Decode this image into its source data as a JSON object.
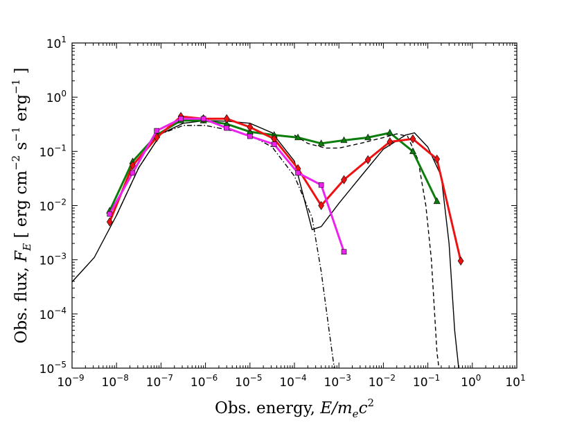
{
  "chart_data": {
    "type": "line",
    "x_scale": "log",
    "y_scale": "log",
    "xlim": [
      1e-09,
      10
    ],
    "ylim": [
      1e-05,
      10
    ],
    "xlabel_text": "Obs. energy, ",
    "xlabel_math": "E/m",
    "xlabel_sub": "e",
    "xlabel_c": "c",
    "xlabel_sup": "2",
    "ylabel_text": "Obs. flux, ",
    "ylabel_math": "F",
    "ylabel_sub": "E",
    "ylabel_unit_1": "[ erg cm",
    "ylabel_unit_1_sup": "−2",
    "ylabel_unit_2": " s",
    "ylabel_unit_2_sup": "−1",
    "ylabel_unit_3": " erg",
    "ylabel_unit_3_sup": "−1",
    "ylabel_unit_4": " ]",
    "x_ticks": [
      {
        "base": "10",
        "exp": "-9"
      },
      {
        "base": "10",
        "exp": "-8"
      },
      {
        "base": "10",
        "exp": "-7"
      },
      {
        "base": "10",
        "exp": "-6"
      },
      {
        "base": "10",
        "exp": "-5"
      },
      {
        "base": "10",
        "exp": "-4"
      },
      {
        "base": "10",
        "exp": "-3"
      },
      {
        "base": "10",
        "exp": "-2"
      },
      {
        "base": "10",
        "exp": "-1"
      },
      {
        "base": "10",
        "exp": "0"
      },
      {
        "base": "10",
        "exp": "1"
      }
    ],
    "y_ticks": [
      {
        "base": "10",
        "exp": "-5"
      },
      {
        "base": "10",
        "exp": "-4"
      },
      {
        "base": "10",
        "exp": "-3"
      },
      {
        "base": "10",
        "exp": "-2"
      },
      {
        "base": "10",
        "exp": "-1"
      },
      {
        "base": "10",
        "exp": "0"
      },
      {
        "base": "10",
        "exp": "1"
      }
    ],
    "series": [
      {
        "style": "solid-black-thin",
        "color": "#000000",
        "points": [
          [
            1e-09,
            0.00039
          ],
          [
            3.16e-09,
            0.0011
          ],
          [
            1e-08,
            0.0066
          ],
          [
            3.16e-08,
            0.05
          ],
          [
            1e-07,
            0.21
          ],
          [
            3.16e-07,
            0.33
          ],
          [
            1e-06,
            0.37
          ],
          [
            3.16e-06,
            0.36
          ],
          [
            1e-05,
            0.33
          ],
          [
            3.16e-05,
            0.22
          ],
          [
            0.0001,
            0.066
          ],
          [
            0.00025,
            0.0036
          ],
          [
            0.0004,
            0.0041
          ],
          [
            0.001,
            0.011
          ],
          [
            0.00316,
            0.035
          ],
          [
            0.01,
            0.11
          ],
          [
            0.0316,
            0.2
          ],
          [
            0.05,
            0.22
          ],
          [
            0.1,
            0.12
          ],
          [
            0.2,
            0.035
          ],
          [
            0.3,
            0.002
          ],
          [
            0.4,
            5e-05
          ],
          [
            0.5,
            9e-06
          ]
        ]
      },
      {
        "style": "dashed-black",
        "color": "#000000",
        "points": [
          [
            0.0001,
            0.2
          ],
          [
            0.0002,
            0.14
          ],
          [
            0.0005,
            0.115
          ],
          [
            0.001,
            0.115
          ],
          [
            0.003,
            0.14
          ],
          [
            0.01,
            0.18
          ],
          [
            0.02,
            0.21
          ],
          [
            0.035,
            0.19
          ],
          [
            0.06,
            0.07
          ],
          [
            0.09,
            0.01
          ],
          [
            0.12,
            0.001
          ],
          [
            0.16,
            2e-05
          ],
          [
            0.18,
            9e-06
          ]
        ]
      },
      {
        "style": "dashdot-black",
        "color": "#000000",
        "points": [
          [
            1e-08,
            0.0066
          ],
          [
            3.16e-08,
            0.05
          ],
          [
            1e-07,
            0.21
          ],
          [
            3.16e-07,
            0.3
          ],
          [
            1e-06,
            0.3
          ],
          [
            3.16e-06,
            0.25
          ],
          [
            1e-05,
            0.2
          ],
          [
            3.16e-05,
            0.12
          ],
          [
            0.0001,
            0.035
          ],
          [
            0.00025,
            0.006
          ],
          [
            0.0004,
            0.0006
          ],
          [
            0.0006,
            5e-05
          ],
          [
            0.0008,
            9e-06
          ]
        ]
      },
      {
        "style": "green-triangles",
        "color": "#0b7d0b",
        "marker": "triangle",
        "points": [
          [
            7e-09,
            0.008
          ],
          [
            2.3e-08,
            0.065
          ],
          [
            8e-08,
            0.2
          ],
          [
            2.8e-07,
            0.37
          ],
          [
            9e-07,
            0.37
          ],
          [
            3e-06,
            0.32
          ],
          [
            1e-05,
            0.23
          ],
          [
            3.5e-05,
            0.2
          ],
          [
            0.00012,
            0.18
          ],
          [
            0.0004,
            0.14
          ],
          [
            0.0013,
            0.16
          ],
          [
            0.0045,
            0.18
          ],
          [
            0.014,
            0.22
          ],
          [
            0.046,
            0.1
          ],
          [
            0.16,
            0.012
          ]
        ]
      },
      {
        "style": "red-diamonds",
        "color": "#ee1111",
        "marker": "diamond",
        "points": [
          [
            7e-09,
            0.005
          ],
          [
            2.3e-08,
            0.055
          ],
          [
            8e-08,
            0.18
          ],
          [
            2.8e-07,
            0.44
          ],
          [
            9e-07,
            0.4
          ],
          [
            3e-06,
            0.4
          ],
          [
            1e-05,
            0.28
          ],
          [
            3.5e-05,
            0.17
          ],
          [
            0.00012,
            0.048
          ],
          [
            0.0004,
            0.01
          ],
          [
            0.0013,
            0.03
          ],
          [
            0.0045,
            0.07
          ],
          [
            0.014,
            0.15
          ],
          [
            0.046,
            0.17
          ],
          [
            0.16,
            0.072
          ],
          [
            0.55,
            0.00095
          ]
        ]
      },
      {
        "style": "magenta-squares",
        "color": "#ee22ee",
        "marker": "square",
        "points": [
          [
            7e-09,
            0.007
          ],
          [
            2.3e-08,
            0.04
          ],
          [
            8e-08,
            0.24
          ],
          [
            2.8e-07,
            0.4
          ],
          [
            9e-07,
            0.4
          ],
          [
            3e-06,
            0.27
          ],
          [
            1e-05,
            0.19
          ],
          [
            3.5e-05,
            0.135
          ],
          [
            0.00012,
            0.04
          ],
          [
            0.0004,
            0.024
          ],
          [
            0.0013,
            0.0014
          ]
        ]
      }
    ]
  }
}
